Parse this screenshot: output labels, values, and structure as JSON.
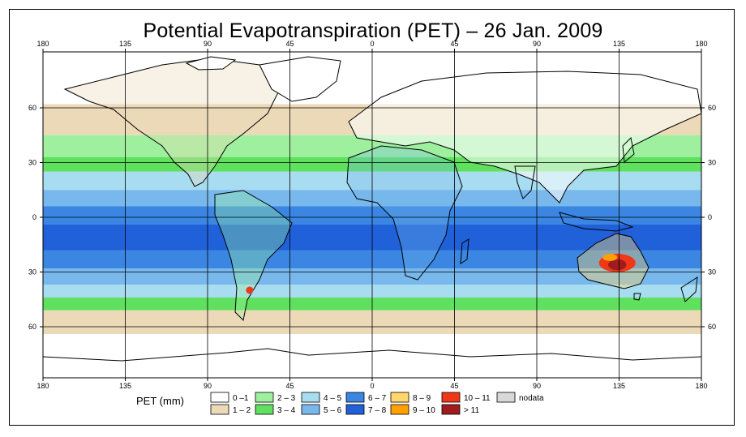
{
  "title": "Potential Evapotranspiration (PET) – 26 Jan. 2009",
  "axes": {
    "top_ticks": [
      "180",
      "135",
      "90",
      "45",
      "0",
      "45",
      "90",
      "135",
      "180"
    ],
    "bottom_ticks": [
      "180",
      "135",
      "90",
      "45",
      "0",
      "45",
      "90",
      "135",
      "180"
    ],
    "left_ticks": [
      "60",
      "30",
      "0",
      "30",
      "60"
    ],
    "right_ticks": [
      "60",
      "30",
      "0",
      "30",
      "60"
    ]
  },
  "legend": {
    "title": "PET (mm)",
    "items": [
      {
        "label": "0 –1",
        "color": "#ffffff"
      },
      {
        "label": "1 – 2",
        "color": "#ecd9b8"
      },
      {
        "label": "2 – 3",
        "color": "#9ef09e"
      },
      {
        "label": "3 – 4",
        "color": "#5fe05f"
      },
      {
        "label": "4 – 5",
        "color": "#a8dcf0"
      },
      {
        "label": "5 – 6",
        "color": "#78b8ec"
      },
      {
        "label": "6 – 7",
        "color": "#3a86e2"
      },
      {
        "label": "7 – 8",
        "color": "#2060d8"
      },
      {
        "label": "8 – 9",
        "color": "#ffd76a"
      },
      {
        "label": "9 – 10",
        "color": "#ffa000"
      },
      {
        "label": "10 – 11",
        "color": "#f03818"
      },
      {
        "label": "> 11",
        "color": "#a01c1c"
      },
      {
        "label": "nodata",
        "color": "#d8d8d8"
      }
    ]
  },
  "bands": [
    {
      "lat_from": 90,
      "lat_to": 62,
      "color": "#ffffff"
    },
    {
      "lat_from": 62,
      "lat_to": 45,
      "color": "#ecd9b8"
    },
    {
      "lat_from": 45,
      "lat_to": 33,
      "color": "#9ef09e"
    },
    {
      "lat_from": 33,
      "lat_to": 25,
      "color": "#5fe05f"
    },
    {
      "lat_from": 25,
      "lat_to": 15,
      "color": "#a8dcf0"
    },
    {
      "lat_from": 15,
      "lat_to": 6,
      "color": "#78b8ec"
    },
    {
      "lat_from": 6,
      "lat_to": -4,
      "color": "#3a86e2"
    },
    {
      "lat_from": -4,
      "lat_to": -18,
      "color": "#2060d8"
    },
    {
      "lat_from": -18,
      "lat_to": -28,
      "color": "#3a86e2"
    },
    {
      "lat_from": -28,
      "lat_to": -37,
      "color": "#78b8ec"
    },
    {
      "lat_from": -37,
      "lat_to": -44,
      "color": "#a8dcf0"
    },
    {
      "lat_from": -44,
      "lat_to": -51,
      "color": "#5fe05f"
    },
    {
      "lat_from": -51,
      "lat_to": -64,
      "color": "#ecd9b8"
    },
    {
      "lat_from": -64,
      "lat_to": -90,
      "color": "#ffffff"
    }
  ],
  "hotspots": [
    {
      "name": "australia",
      "lon": 134,
      "lat": -25,
      "rlon": 10,
      "rlat": 5,
      "color": "#f03818"
    },
    {
      "name": "australia-core",
      "lon": 134,
      "lat": -26,
      "rlon": 5,
      "rlat": 3,
      "color": "#a01c1c"
    },
    {
      "name": "australia-rim",
      "lon": 130,
      "lat": -22,
      "rlon": 4,
      "rlat": 2,
      "color": "#ffa000"
    },
    {
      "name": "patagonia",
      "lon": -67,
      "lat": -40,
      "rlon": 2,
      "rlat": 2,
      "color": "#f03818"
    }
  ]
}
